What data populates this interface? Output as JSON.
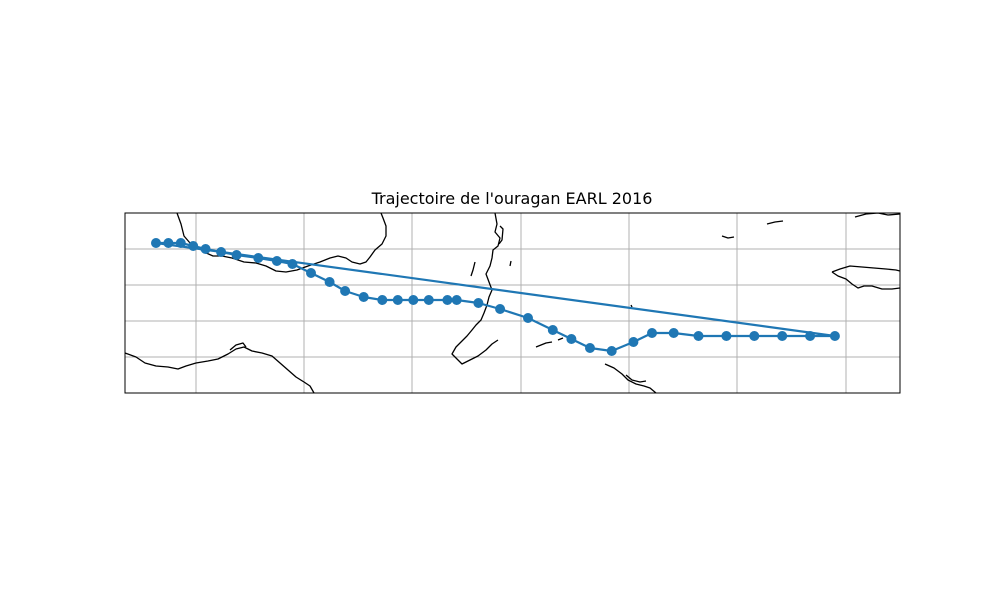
{
  "chart_data": {
    "type": "line",
    "title": "Trajectoire de l'ouragan EARL 2016",
    "xlabel": "",
    "ylabel": "",
    "grid": true,
    "marker": "circle",
    "line_color": "#1f77b4",
    "series": [
      {
        "lon": [
          -92.8,
          -92.4,
          -92.0,
          -91.6,
          -91.2,
          -90.7,
          -90.2,
          -89.5,
          -88.9,
          -88.4,
          -87.8,
          -87.2,
          -86.7,
          -86.1,
          -85.5,
          -85.0,
          -84.5,
          -84.0,
          -83.4,
          -83.1,
          -82.4,
          -81.7,
          -80.8,
          -80.0,
          -79.4,
          -78.8,
          -78.1,
          -77.4,
          -76.8,
          -76.1,
          -75.3,
          -74.4,
          -73.5,
          -72.6,
          -71.7,
          -70.9
        ],
        "lat": [
          20.0,
          20.0,
          20.0,
          19.9,
          19.8,
          19.7,
          19.6,
          19.5,
          19.4,
          19.3,
          19.0,
          18.7,
          18.4,
          18.2,
          18.1,
          18.1,
          18.1,
          18.1,
          18.1,
          18.1,
          18.0,
          17.8,
          17.5,
          17.1,
          16.8,
          16.5,
          16.4,
          16.7,
          17.0,
          17.0,
          16.9,
          16.9,
          16.9,
          16.9,
          16.9,
          16.9
        ]
      }
    ]
  },
  "colors": {
    "track": "#1f77b4",
    "grid": "#b0b0b0",
    "coastline": "#000000"
  }
}
